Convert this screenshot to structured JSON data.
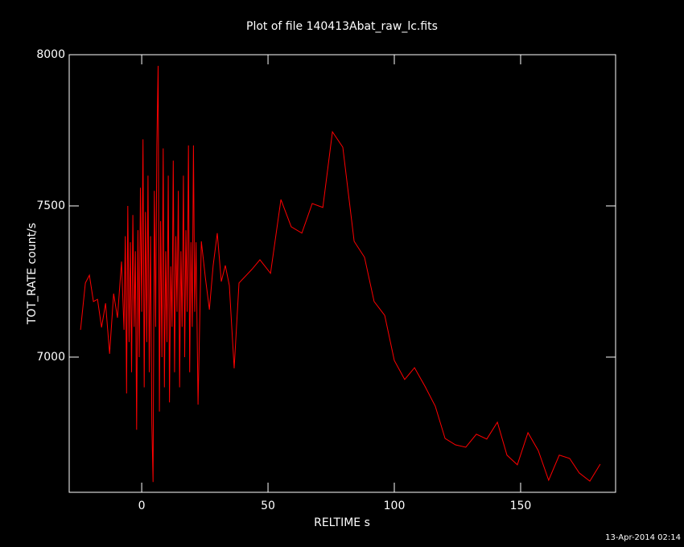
{
  "chart_data": {
    "type": "line",
    "title": "Plot of file 140413Abat_raw_lc.fits",
    "x_label": "RELTIME  s",
    "y_label": "TOT_RATE  count/s",
    "footer": "13-Apr-2014 02:14",
    "color": "#ff0000",
    "xlim": [
      -28.7,
      187.6
    ],
    "ylim": [
      6553,
      8000
    ],
    "xticks": [
      0,
      50,
      100,
      150
    ],
    "yticks": [
      7000,
      7500,
      8000
    ],
    "x": [
      -24.2,
      -22.3,
      -20.7,
      -19.1,
      -17.5,
      -15.9,
      -14.3,
      -12.7,
      -11.1,
      -9.6,
      -8.0,
      -7.0,
      -6.5,
      -6,
      -5.5,
      -5,
      -4.5,
      -4,
      -3.5,
      -3,
      -2.5,
      -2,
      -1.5,
      -1,
      -0.5,
      0,
      0.5,
      1,
      1.5,
      2,
      2.5,
      3,
      3.5,
      4,
      4.5,
      5,
      5.5,
      6,
      6.5,
      7,
      7.5,
      8,
      8.5,
      9,
      9.5,
      10,
      10.5,
      11,
      11.5,
      12,
      12.5,
      13,
      13.5,
      14,
      14.5,
      15,
      15.5,
      16,
      16.5,
      17,
      17.5,
      18,
      18.5,
      19,
      19.5,
      20,
      20.5,
      21,
      21.5,
      22.3,
      23.6,
      25.2,
      26.8,
      28.3,
      29.9,
      31.5,
      33.1,
      34.7,
      36.6,
      38.5,
      43.6,
      46.8,
      51,
      55.1,
      59.2,
      63.4,
      67.5,
      71.7,
      75.5,
      79.6,
      84.1,
      88.2,
      92,
      96.2,
      100,
      104.1,
      108,
      112.1,
      116.2,
      120.1,
      124.2,
      128.3,
      132.5,
      136.6,
      140.8,
      144.6,
      148.7,
      152.9,
      157,
      161.1,
      165.3,
      169.4,
      173.2,
      177.4,
      181.5
    ],
    "values": [
      7090,
      7245,
      7271,
      7184,
      7191,
      7098,
      7178,
      7011,
      7210,
      7130,
      7316,
      7090,
      7400,
      6880,
      7500,
      7050,
      7380,
      6950,
      7470,
      7100,
      7350,
      6760,
      7420,
      7000,
      7560,
      7150,
      7720,
      6900,
      7480,
      7050,
      7600,
      6950,
      7400,
      6780,
      6587,
      7550,
      7100,
      7700,
      7963,
      6820,
      7450,
      7000,
      7690,
      6900,
      7350,
      7050,
      7600,
      6850,
      7300,
      7100,
      7650,
      6950,
      7400,
      7150,
      7550,
      6900,
      7350,
      7100,
      7600,
      7000,
      7420,
      7150,
      7700,
      6950,
      7380,
      7100,
      7700,
      7150,
      7380,
      6843,
      7383,
      7263,
      7157,
      7303,
      7410,
      7250,
      7303,
      7237,
      6963,
      7245,
      7290,
      7322,
      7277,
      7521,
      7431,
      7410,
      7508,
      7495,
      7745,
      7694,
      7383,
      7330,
      7184,
      7138,
      6989,
      6926,
      6965,
      6904,
      6838,
      6731,
      6710,
      6702,
      6745,
      6729,
      6785,
      6676,
      6644,
      6750,
      6691,
      6593,
      6676,
      6665,
      6617,
      6590,
      6646
    ]
  }
}
